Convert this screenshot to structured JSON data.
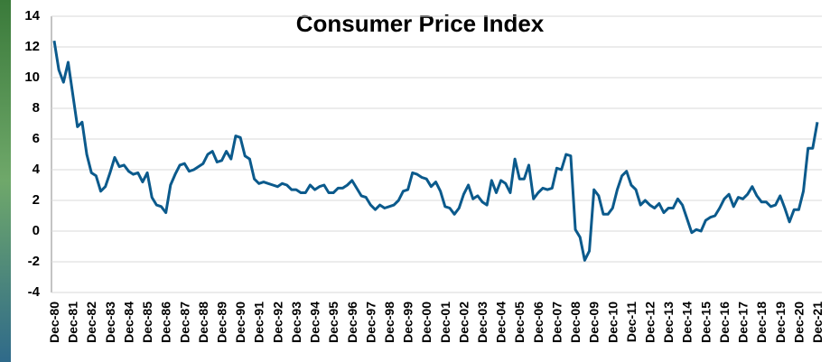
{
  "chart_data": {
    "type": "line",
    "title": "Consumer Price Index",
    "categories": [
      "Dec-80",
      null,
      null,
      null,
      "Dec-81",
      null,
      null,
      null,
      "Dec-82",
      null,
      null,
      null,
      "Dec-83",
      null,
      null,
      null,
      "Dec-84",
      null,
      null,
      null,
      "Dec-85",
      null,
      null,
      null,
      "Dec-86",
      null,
      null,
      null,
      "Dec-87",
      null,
      null,
      null,
      "Dec-88",
      null,
      null,
      null,
      "Dec-89",
      null,
      null,
      null,
      "Dec-90",
      null,
      null,
      null,
      "Dec-91",
      null,
      null,
      null,
      "Dec-92",
      null,
      null,
      null,
      "Dec-93",
      null,
      null,
      null,
      "Dec-94",
      null,
      null,
      null,
      "Dec-95",
      null,
      null,
      null,
      "Dec-96",
      null,
      null,
      null,
      "Dec-97",
      null,
      null,
      null,
      "Dec-98",
      null,
      null,
      null,
      "Dec-99",
      null,
      null,
      null,
      "Dec-00",
      null,
      null,
      null,
      "Dec-01",
      null,
      null,
      null,
      "Dec-02",
      null,
      null,
      null,
      "Dec-03",
      null,
      null,
      null,
      "Dec-04",
      null,
      null,
      null,
      "Dec-05",
      null,
      null,
      null,
      "Dec-06",
      null,
      null,
      null,
      "Dec-07",
      null,
      null,
      null,
      "Dec-08",
      null,
      null,
      null,
      "Dec-09",
      null,
      null,
      null,
      "Dec-10",
      null,
      null,
      null,
      "Dec-11",
      null,
      null,
      null,
      "Dec-12",
      null,
      null,
      null,
      "Dec-13",
      null,
      null,
      null,
      "Dec-14",
      null,
      null,
      null,
      "Dec-15",
      null,
      null,
      null,
      "Dec-16",
      null,
      null,
      null,
      "Dec-17",
      null,
      null,
      null,
      "Dec-18",
      null,
      null,
      null,
      "Dec-19",
      null,
      null,
      null,
      "Dec-20",
      null,
      null,
      null,
      "Dec-21"
    ],
    "series": [
      {
        "color": "#0b5a8c",
        "values": [
          12.4,
          10.5,
          9.7,
          11.0,
          8.9,
          6.8,
          7.1,
          5.0,
          3.8,
          3.6,
          2.6,
          2.9,
          3.8,
          4.8,
          4.2,
          4.3,
          3.9,
          3.7,
          3.8,
          3.2,
          3.8,
          2.2,
          1.7,
          1.6,
          1.2,
          3.0,
          3.7,
          4.3,
          4.4,
          3.9,
          4.0,
          4.2,
          4.4,
          5.0,
          5.2,
          4.5,
          4.6,
          5.2,
          4.7,
          6.2,
          6.1,
          4.9,
          4.7,
          3.4,
          3.1,
          3.2,
          3.1,
          3.0,
          2.9,
          3.1,
          3.0,
          2.7,
          2.7,
          2.5,
          2.5,
          3.0,
          2.7,
          2.9,
          3.0,
          2.5,
          2.5,
          2.8,
          2.8,
          3.0,
          3.3,
          2.8,
          2.3,
          2.2,
          1.7,
          1.4,
          1.7,
          1.5,
          1.6,
          1.7,
          2.0,
          2.6,
          2.7,
          3.8,
          3.7,
          3.5,
          3.4,
          2.9,
          3.2,
          2.6,
          1.6,
          1.5,
          1.1,
          1.5,
          2.4,
          3.0,
          2.1,
          2.3,
          1.9,
          1.7,
          3.3,
          2.5,
          3.3,
          3.1,
          2.5,
          4.7,
          3.4,
          3.4,
          4.3,
          2.1,
          2.5,
          2.8,
          2.7,
          2.8,
          4.1,
          4.0,
          5.0,
          4.9,
          0.1,
          -0.4,
          -1.9,
          -1.3,
          2.7,
          2.3,
          1.1,
          1.1,
          1.5,
          2.7,
          3.6,
          3.9,
          3.0,
          2.7,
          1.7,
          2.0,
          1.7,
          1.5,
          1.8,
          1.2,
          1.5,
          1.5,
          2.1,
          1.7,
          0.8,
          -0.1,
          0.1,
          0.0,
          0.7,
          0.9,
          1.0,
          1.5,
          2.1,
          2.4,
          1.6,
          2.2,
          2.1,
          2.4,
          2.9,
          2.3,
          1.9,
          1.9,
          1.6,
          1.7,
          2.3,
          1.5,
          0.6,
          1.4,
          1.4,
          2.6,
          5.4,
          5.4,
          7.1
        ]
      }
    ],
    "ylim": [
      -4,
      14
    ],
    "yticks": [
      -4,
      -2,
      0,
      2,
      4,
      6,
      8,
      10,
      12,
      14
    ],
    "grid": true
  }
}
